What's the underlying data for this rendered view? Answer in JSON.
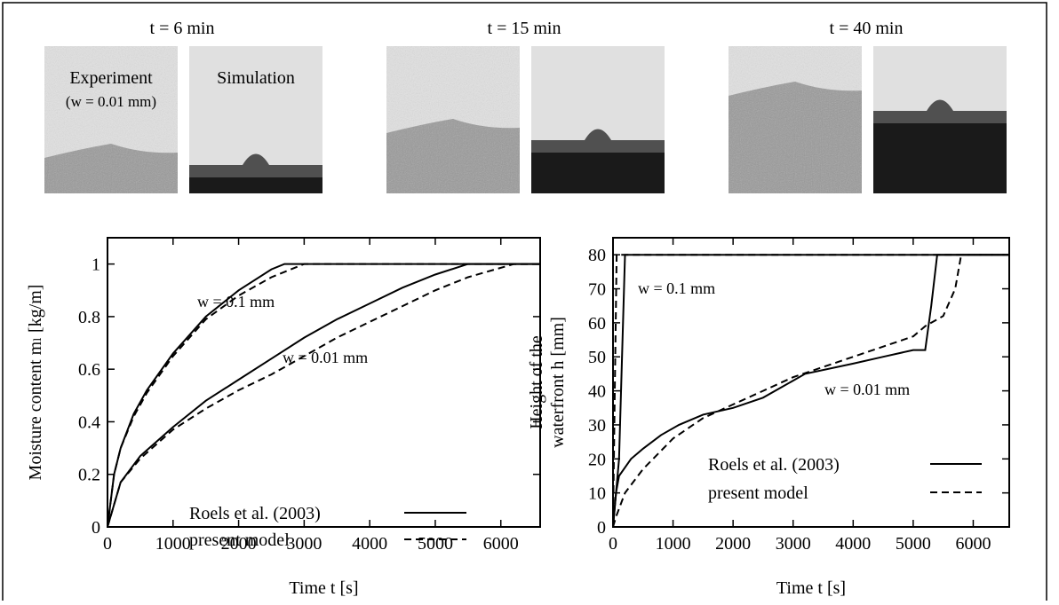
{
  "image_panels": [
    {
      "time": "t = 6 min",
      "experiment": "Experiment",
      "experiment_note": "(w = 0.01 mm)",
      "simulation": "Simulation"
    },
    {
      "time": "t = 15 min"
    },
    {
      "time": "t = 40 min"
    }
  ],
  "chart_data": [
    {
      "type": "line",
      "ylabel": "Moisture content mₗ [kg/m]",
      "xlabel": "Time t [s]",
      "xlim": [
        0,
        6600
      ],
      "xticks": [
        0,
        1000,
        2000,
        3000,
        4000,
        5000,
        6000
      ],
      "ylim": [
        0,
        1.1
      ],
      "yticks": [
        0,
        0.2,
        0.4,
        0.6,
        0.8,
        1
      ],
      "annotations": [
        "w = 0.1 mm",
        "w = 0.01 mm"
      ],
      "series": [
        {
          "name": "Roels et al. (2003)",
          "dash": "solid",
          "color": "#000000",
          "lines": [
            {
              "x": [
                0,
                100,
                200,
                400,
                600,
                1000,
                1500,
                2000,
                2500,
                2700,
                6600
              ],
              "values": [
                0,
                0.2,
                0.3,
                0.43,
                0.52,
                0.66,
                0.8,
                0.9,
                0.98,
                1,
                1
              ]
            },
            {
              "x": [
                0,
                200,
                500,
                1000,
                1500,
                2000,
                2500,
                3000,
                3500,
                4000,
                4500,
                5000,
                5500,
                6600
              ],
              "values": [
                0,
                0.17,
                0.27,
                0.38,
                0.48,
                0.56,
                0.64,
                0.72,
                0.79,
                0.85,
                0.91,
                0.96,
                1,
                1
              ]
            }
          ]
        },
        {
          "name": "present model",
          "dash": "dashed",
          "color": "#000000",
          "lines": [
            {
              "x": [
                0,
                100,
                200,
                400,
                600,
                1000,
                1500,
                2000,
                2500,
                3000,
                6600
              ],
              "values": [
                0,
                0.2,
                0.3,
                0.42,
                0.51,
                0.65,
                0.79,
                0.88,
                0.95,
                1,
                1
              ]
            },
            {
              "x": [
                0,
                200,
                500,
                1000,
                1500,
                2000,
                2500,
                3000,
                3500,
                4000,
                4500,
                5000,
                5500,
                6200,
                6600
              ],
              "values": [
                0,
                0.17,
                0.26,
                0.37,
                0.45,
                0.52,
                0.58,
                0.65,
                0.72,
                0.78,
                0.84,
                0.9,
                0.95,
                1,
                1
              ]
            }
          ]
        }
      ]
    },
    {
      "type": "line",
      "ylabel": [
        "Height of the",
        "waterfront h [mm]"
      ],
      "xlabel": "Time t [s]",
      "xlim": [
        0,
        6600
      ],
      "xticks": [
        0,
        1000,
        2000,
        3000,
        4000,
        5000,
        6000
      ],
      "ylim": [
        0,
        85
      ],
      "yticks": [
        0,
        10,
        20,
        30,
        40,
        50,
        60,
        70,
        80
      ],
      "annotations": [
        "w = 0.1 mm",
        "w = 0.01 mm"
      ],
      "series": [
        {
          "name": "Roels et al. (2003)",
          "dash": "solid",
          "color": "#000000",
          "lines": [
            {
              "x": [
                0,
                100,
                200,
                6600
              ],
              "values": [
                0,
                20,
                80,
                80
              ]
            },
            {
              "x": [
                0,
                50,
                100,
                300,
                500,
                800,
                1100,
                1500,
                2000,
                2500,
                3000,
                3200,
                4000,
                4500,
                5000,
                5200,
                5300,
                5400,
                6600
              ],
              "values": [
                0,
                10,
                15,
                20,
                23,
                27,
                30,
                33,
                35,
                38,
                43,
                45,
                48,
                50,
                52,
                52,
                65,
                80,
                80
              ]
            }
          ]
        },
        {
          "name": "present model",
          "dash": "dashed",
          "color": "#000000",
          "lines": [
            {
              "x": [
                0,
                30,
                60,
                6600
              ],
              "values": [
                0,
                40,
                80,
                80
              ]
            },
            {
              "x": [
                0,
                50,
                200,
                500,
                1000,
                1500,
                2000,
                2500,
                3000,
                3500,
                4000,
                4500,
                5000,
                5200,
                5500,
                5700,
                5800,
                6600
              ],
              "values": [
                0,
                3,
                10,
                17,
                26,
                32,
                36,
                40,
                44,
                47,
                50,
                53,
                56,
                59,
                62,
                70,
                80,
                80
              ]
            }
          ]
        }
      ]
    }
  ]
}
